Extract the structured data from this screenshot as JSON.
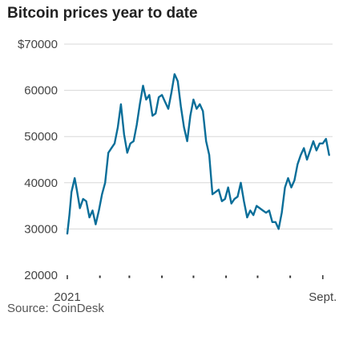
{
  "title": "Bitcoin prices year to date",
  "source": "Source: CoinDesk",
  "colors": {
    "line": "#0a6e99",
    "grid": "#d8d8d8",
    "tick": "#333333"
  },
  "chart_data": {
    "type": "line",
    "title": "Bitcoin prices year to date",
    "xlabel": "",
    "ylabel": "",
    "x_range": [
      "2021-01-01",
      "2021-09-08"
    ],
    "ylim": [
      20000,
      70000
    ],
    "yticks": [
      70000,
      60000,
      50000,
      40000,
      30000,
      20000
    ],
    "ytick_labels": [
      "$70000",
      "60000",
      "50000",
      "40000",
      "30000",
      "20000"
    ],
    "xtick_labels": [
      {
        "date": "2021-01-01",
        "label": "2021"
      },
      {
        "date": "2021-09-01",
        "label": "Sept."
      }
    ],
    "month_ticks": [
      "2021-02-01",
      "2021-03-01",
      "2021-04-01",
      "2021-05-01",
      "2021-06-01",
      "2021-07-01",
      "2021-08-01"
    ],
    "grid": true,
    "series": [
      {
        "x": [
          "2021-01-01",
          "2021-01-03",
          "2021-01-05",
          "2021-01-08",
          "2021-01-10",
          "2021-01-13",
          "2021-01-16",
          "2021-01-19",
          "2021-01-22",
          "2021-01-25",
          "2021-01-28",
          "2021-01-31",
          "2021-02-03",
          "2021-02-06",
          "2021-02-09",
          "2021-02-12",
          "2021-02-15",
          "2021-02-18",
          "2021-02-21",
          "2021-02-24",
          "2021-02-27",
          "2021-03-02",
          "2021-03-05",
          "2021-03-08",
          "2021-03-11",
          "2021-03-14",
          "2021-03-17",
          "2021-03-20",
          "2021-03-23",
          "2021-03-26",
          "2021-03-29",
          "2021-04-01",
          "2021-04-04",
          "2021-04-07",
          "2021-04-10",
          "2021-04-13",
          "2021-04-16",
          "2021-04-19",
          "2021-04-22",
          "2021-04-25",
          "2021-04-28",
          "2021-05-01",
          "2021-05-04",
          "2021-05-07",
          "2021-05-10",
          "2021-05-13",
          "2021-05-16",
          "2021-05-19",
          "2021-05-22",
          "2021-05-25",
          "2021-05-28",
          "2021-05-31",
          "2021-06-03",
          "2021-06-06",
          "2021-06-09",
          "2021-06-12",
          "2021-06-15",
          "2021-06-18",
          "2021-06-21",
          "2021-06-24",
          "2021-06-27",
          "2021-06-30",
          "2021-07-03",
          "2021-07-06",
          "2021-07-09",
          "2021-07-12",
          "2021-07-15",
          "2021-07-18",
          "2021-07-21",
          "2021-07-24",
          "2021-07-27",
          "2021-07-30",
          "2021-08-02",
          "2021-08-05",
          "2021-08-08",
          "2021-08-11",
          "2021-08-14",
          "2021-08-17",
          "2021-08-20",
          "2021-08-23",
          "2021-08-26",
          "2021-08-29",
          "2021-09-01",
          "2021-09-04",
          "2021-09-07"
        ],
        "y": [
          29000,
          33000,
          38000,
          41000,
          38500,
          34500,
          36500,
          36000,
          32500,
          34000,
          31000,
          34000,
          37500,
          40000,
          46500,
          47500,
          48500,
          52000,
          57000,
          50500,
          46500,
          48500,
          49000,
          52500,
          57000,
          61000,
          58000,
          59000,
          54500,
          55000,
          58500,
          59000,
          57500,
          56000,
          59500,
          63500,
          62000,
          56500,
          52000,
          49000,
          54500,
          58000,
          56000,
          57000,
          55500,
          49000,
          46000,
          37500,
          38000,
          38500,
          36000,
          36500,
          39000,
          35500,
          36500,
          37000,
          40000,
          36000,
          32500,
          34000,
          33000,
          35000,
          34500,
          34000,
          33500,
          34000,
          31500,
          31500,
          30000,
          33500,
          39000,
          41000,
          39000,
          40500,
          44000,
          46000,
          47500,
          45000,
          47000,
          49000,
          47000,
          48500,
          48500,
          49500,
          46000
        ]
      }
    ]
  }
}
